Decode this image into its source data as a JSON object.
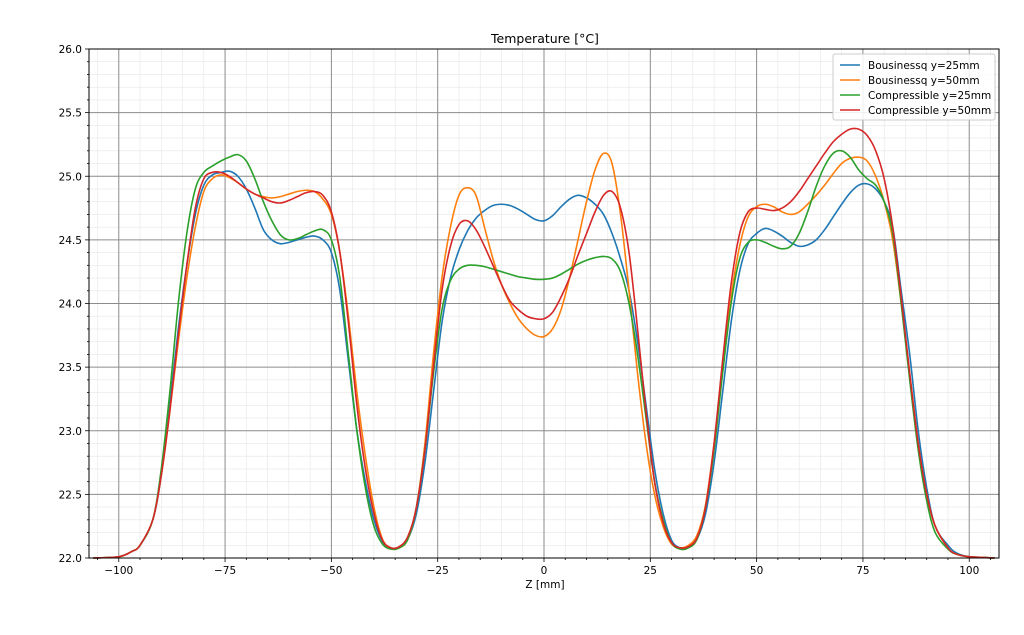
{
  "chart_data": {
    "type": "line",
    "title": "Temperature [°C]",
    "xlabel": "Z [mm]",
    "ylabel": "",
    "xlim": [
      -107,
      107
    ],
    "ylim": [
      22.0,
      26.0
    ],
    "xticks": [
      -100,
      -75,
      -50,
      -25,
      0,
      25,
      50,
      75,
      100
    ],
    "xtick_labels": [
      "−100",
      "−75",
      "−50",
      "−25",
      "0",
      "25",
      "50",
      "75",
      "100"
    ],
    "yticks": [
      22.0,
      22.5,
      23.0,
      23.5,
      24.0,
      24.5,
      25.0,
      25.5,
      26.0
    ],
    "ytick_labels": [
      "22.0",
      "22.5",
      "23.0",
      "23.5",
      "24.0",
      "24.5",
      "25.0",
      "25.5",
      "26.0"
    ],
    "grid": true,
    "legend": "top-right",
    "series": [
      {
        "name": "Bousinessq y=25mm",
        "color": "#1f77b4",
        "x": [
          -106,
          -100,
          -97,
          -95,
          -92,
          -90,
          -88,
          -86,
          -84,
          -82,
          -80,
          -78,
          -76,
          -74,
          -72,
          -70,
          -68,
          -66,
          -64,
          -62,
          -60,
          -58,
          -56,
          -54,
          -52,
          -50,
          -48,
          -46,
          -44,
          -42,
          -40,
          -38,
          -36,
          -34,
          -32,
          -30,
          -28,
          -26,
          -24,
          -22,
          -20,
          -18,
          -16,
          -14,
          -12,
          -10,
          -8,
          -6,
          -4,
          -2,
          0,
          2,
          4,
          6,
          8,
          10,
          12,
          14,
          16,
          18,
          20,
          22,
          24,
          26,
          28,
          30,
          32,
          34,
          36,
          38,
          40,
          42,
          44,
          46,
          48,
          50,
          52,
          54,
          56,
          58,
          60,
          62,
          64,
          66,
          68,
          70,
          72,
          74,
          76,
          78,
          80,
          82,
          84,
          86,
          88,
          90,
          92,
          95,
          97,
          100,
          106
        ],
        "y": [
          22.0,
          22.01,
          22.05,
          22.1,
          22.3,
          22.65,
          23.2,
          23.8,
          24.3,
          24.7,
          24.93,
          25.01,
          25.03,
          25.04,
          25.0,
          24.9,
          24.75,
          24.58,
          24.5,
          24.47,
          24.48,
          24.5,
          24.52,
          24.53,
          24.5,
          24.4,
          24.1,
          23.55,
          23.0,
          22.6,
          22.3,
          22.13,
          22.08,
          22.08,
          22.15,
          22.35,
          22.75,
          23.3,
          23.85,
          24.2,
          24.42,
          24.57,
          24.67,
          24.73,
          24.77,
          24.78,
          24.77,
          24.74,
          24.7,
          24.66,
          24.65,
          24.69,
          24.76,
          24.82,
          24.85,
          24.83,
          24.78,
          24.7,
          24.55,
          24.35,
          24.1,
          23.7,
          23.2,
          22.7,
          22.35,
          22.14,
          22.08,
          22.09,
          22.15,
          22.35,
          22.75,
          23.3,
          23.85,
          24.25,
          24.47,
          24.55,
          24.59,
          24.57,
          24.53,
          24.48,
          24.45,
          24.46,
          24.5,
          24.58,
          24.68,
          24.78,
          24.87,
          24.93,
          24.94,
          24.9,
          24.8,
          24.6,
          24.1,
          23.6,
          23.0,
          22.55,
          22.25,
          22.1,
          22.04,
          22.01,
          22.0
        ]
      },
      {
        "name": "Bousinessq y=50mm",
        "color": "#ff7f0e",
        "x": [
          -106,
          -100,
          -97,
          -95,
          -92,
          -90,
          -88,
          -86,
          -84,
          -82,
          -80,
          -78,
          -76,
          -74,
          -72,
          -70,
          -68,
          -66,
          -64,
          -62,
          -60,
          -58,
          -56,
          -54,
          -52,
          -50,
          -48,
          -46,
          -44,
          -42,
          -40,
          -38,
          -36,
          -34,
          -32,
          -30,
          -28,
          -26,
          -24,
          -22,
          -20,
          -18,
          -16,
          -14,
          -12,
          -10,
          -8,
          -6,
          -4,
          -2,
          0,
          2,
          4,
          6,
          8,
          10,
          12,
          14,
          16,
          18,
          20,
          22,
          24,
          26,
          28,
          30,
          32,
          34,
          36,
          38,
          40,
          42,
          44,
          46,
          48,
          50,
          52,
          54,
          56,
          58,
          60,
          62,
          64,
          66,
          68,
          70,
          72,
          74,
          76,
          78,
          80,
          82,
          84,
          86,
          88,
          90,
          92,
          95,
          97,
          100,
          106
        ],
        "y": [
          22.0,
          22.01,
          22.05,
          22.1,
          22.3,
          22.65,
          23.15,
          23.7,
          24.2,
          24.6,
          24.88,
          24.98,
          25.01,
          24.99,
          24.95,
          24.9,
          24.86,
          24.84,
          24.83,
          24.84,
          24.86,
          24.88,
          24.89,
          24.88,
          24.82,
          24.7,
          24.4,
          23.9,
          23.3,
          22.8,
          22.4,
          22.15,
          22.08,
          22.08,
          22.15,
          22.4,
          22.9,
          23.6,
          24.2,
          24.6,
          24.85,
          24.91,
          24.85,
          24.6,
          24.35,
          24.15,
          24.0,
          23.88,
          23.8,
          23.75,
          23.74,
          23.8,
          23.95,
          24.2,
          24.5,
          24.8,
          25.05,
          25.18,
          25.1,
          24.7,
          24.1,
          23.45,
          22.9,
          22.5,
          22.25,
          22.11,
          22.08,
          22.1,
          22.18,
          22.42,
          22.9,
          23.5,
          24.05,
          24.45,
          24.68,
          24.76,
          24.78,
          24.76,
          24.72,
          24.7,
          24.72,
          24.78,
          24.85,
          24.93,
          25.02,
          25.1,
          25.14,
          25.15,
          25.12,
          25.0,
          24.8,
          24.5,
          24.0,
          23.45,
          22.9,
          22.5,
          22.25,
          22.08,
          22.03,
          22.01,
          22.0
        ]
      },
      {
        "name": "Compressible y=25mm",
        "color": "#2ca02c",
        "x": [
          -106,
          -100,
          -97,
          -95,
          -92,
          -90,
          -88,
          -86,
          -84,
          -82,
          -80,
          -78,
          -76,
          -74,
          -72,
          -70,
          -68,
          -66,
          -64,
          -62,
          -60,
          -58,
          -56,
          -54,
          -52,
          -50,
          -48,
          -46,
          -44,
          -42,
          -40,
          -38,
          -36,
          -34,
          -32,
          -30,
          -28,
          -26,
          -24,
          -22,
          -20,
          -18,
          -16,
          -14,
          -12,
          -10,
          -8,
          -6,
          -4,
          -2,
          0,
          2,
          4,
          6,
          8,
          10,
          12,
          14,
          16,
          18,
          20,
          22,
          24,
          26,
          28,
          30,
          32,
          34,
          36,
          38,
          40,
          42,
          44,
          46,
          48,
          50,
          52,
          54,
          56,
          58,
          60,
          62,
          64,
          66,
          68,
          70,
          72,
          74,
          76,
          78,
          80,
          82,
          84,
          86,
          88,
          90,
          92,
          95,
          97,
          100,
          106
        ],
        "y": [
          22.0,
          22.01,
          22.05,
          22.1,
          22.3,
          22.7,
          23.3,
          24.0,
          24.55,
          24.9,
          25.03,
          25.08,
          25.12,
          25.15,
          25.17,
          25.12,
          24.98,
          24.8,
          24.65,
          24.54,
          24.5,
          24.51,
          24.54,
          24.57,
          24.58,
          24.5,
          24.2,
          23.6,
          23.0,
          22.55,
          22.25,
          22.11,
          22.07,
          22.08,
          22.15,
          22.4,
          22.85,
          23.45,
          23.95,
          24.18,
          24.27,
          24.3,
          24.3,
          24.29,
          24.27,
          24.25,
          24.23,
          24.21,
          24.2,
          24.19,
          24.19,
          24.2,
          24.23,
          24.27,
          24.31,
          24.34,
          24.36,
          24.37,
          24.35,
          24.25,
          24.0,
          23.6,
          23.1,
          22.6,
          22.3,
          22.12,
          22.07,
          22.08,
          22.15,
          22.4,
          22.85,
          23.45,
          24.0,
          24.35,
          24.48,
          24.5,
          24.48,
          24.45,
          24.43,
          24.45,
          24.55,
          24.72,
          24.92,
          25.08,
          25.18,
          25.2,
          25.15,
          25.05,
          24.98,
          24.93,
          24.8,
          24.55,
          24.0,
          23.4,
          22.85,
          22.45,
          22.2,
          22.07,
          22.03,
          22.01,
          22.0
        ]
      },
      {
        "name": "Compressible y=50mm",
        "color": "#d62728",
        "x": [
          -106,
          -100,
          -97,
          -95,
          -92,
          -90,
          -88,
          -86,
          -84,
          -82,
          -80,
          -78,
          -76,
          -74,
          -72,
          -70,
          -68,
          -66,
          -64,
          -62,
          -60,
          -58,
          -56,
          -54,
          -52,
          -50,
          -48,
          -46,
          -44,
          -42,
          -40,
          -38,
          -36,
          -34,
          -32,
          -30,
          -28,
          -26,
          -24,
          -22,
          -20,
          -18,
          -16,
          -14,
          -12,
          -10,
          -8,
          -6,
          -4,
          -2,
          0,
          2,
          4,
          6,
          8,
          10,
          12,
          14,
          16,
          18,
          20,
          22,
          24,
          26,
          28,
          30,
          32,
          34,
          36,
          38,
          40,
          42,
          44,
          46,
          48,
          50,
          52,
          54,
          56,
          58,
          60,
          62,
          64,
          66,
          68,
          70,
          72,
          74,
          76,
          78,
          80,
          82,
          84,
          86,
          88,
          90,
          92,
          95,
          97,
          100,
          106
        ],
        "y": [
          22.0,
          22.01,
          22.05,
          22.1,
          22.3,
          22.65,
          23.15,
          23.75,
          24.3,
          24.75,
          24.98,
          25.03,
          25.03,
          25.0,
          24.95,
          24.9,
          24.86,
          24.83,
          24.8,
          24.79,
          24.81,
          24.84,
          24.87,
          24.88,
          24.85,
          24.72,
          24.4,
          23.85,
          23.2,
          22.7,
          22.35,
          22.14,
          22.08,
          22.09,
          22.17,
          22.4,
          22.85,
          23.5,
          24.1,
          24.45,
          24.62,
          24.65,
          24.58,
          24.45,
          24.3,
          24.15,
          24.02,
          23.95,
          23.9,
          23.88,
          23.88,
          23.93,
          24.05,
          24.2,
          24.38,
          24.55,
          24.72,
          24.85,
          24.88,
          24.75,
          24.4,
          23.8,
          23.15,
          22.6,
          22.28,
          22.12,
          22.08,
          22.09,
          22.16,
          22.4,
          22.9,
          23.55,
          24.15,
          24.55,
          24.72,
          24.75,
          24.74,
          24.73,
          24.75,
          24.8,
          24.88,
          24.98,
          25.08,
          25.18,
          25.27,
          25.33,
          25.37,
          25.37,
          25.32,
          25.2,
          24.98,
          24.6,
          24.05,
          23.45,
          22.9,
          22.5,
          22.25,
          22.08,
          22.03,
          22.01,
          22.0
        ]
      }
    ]
  }
}
